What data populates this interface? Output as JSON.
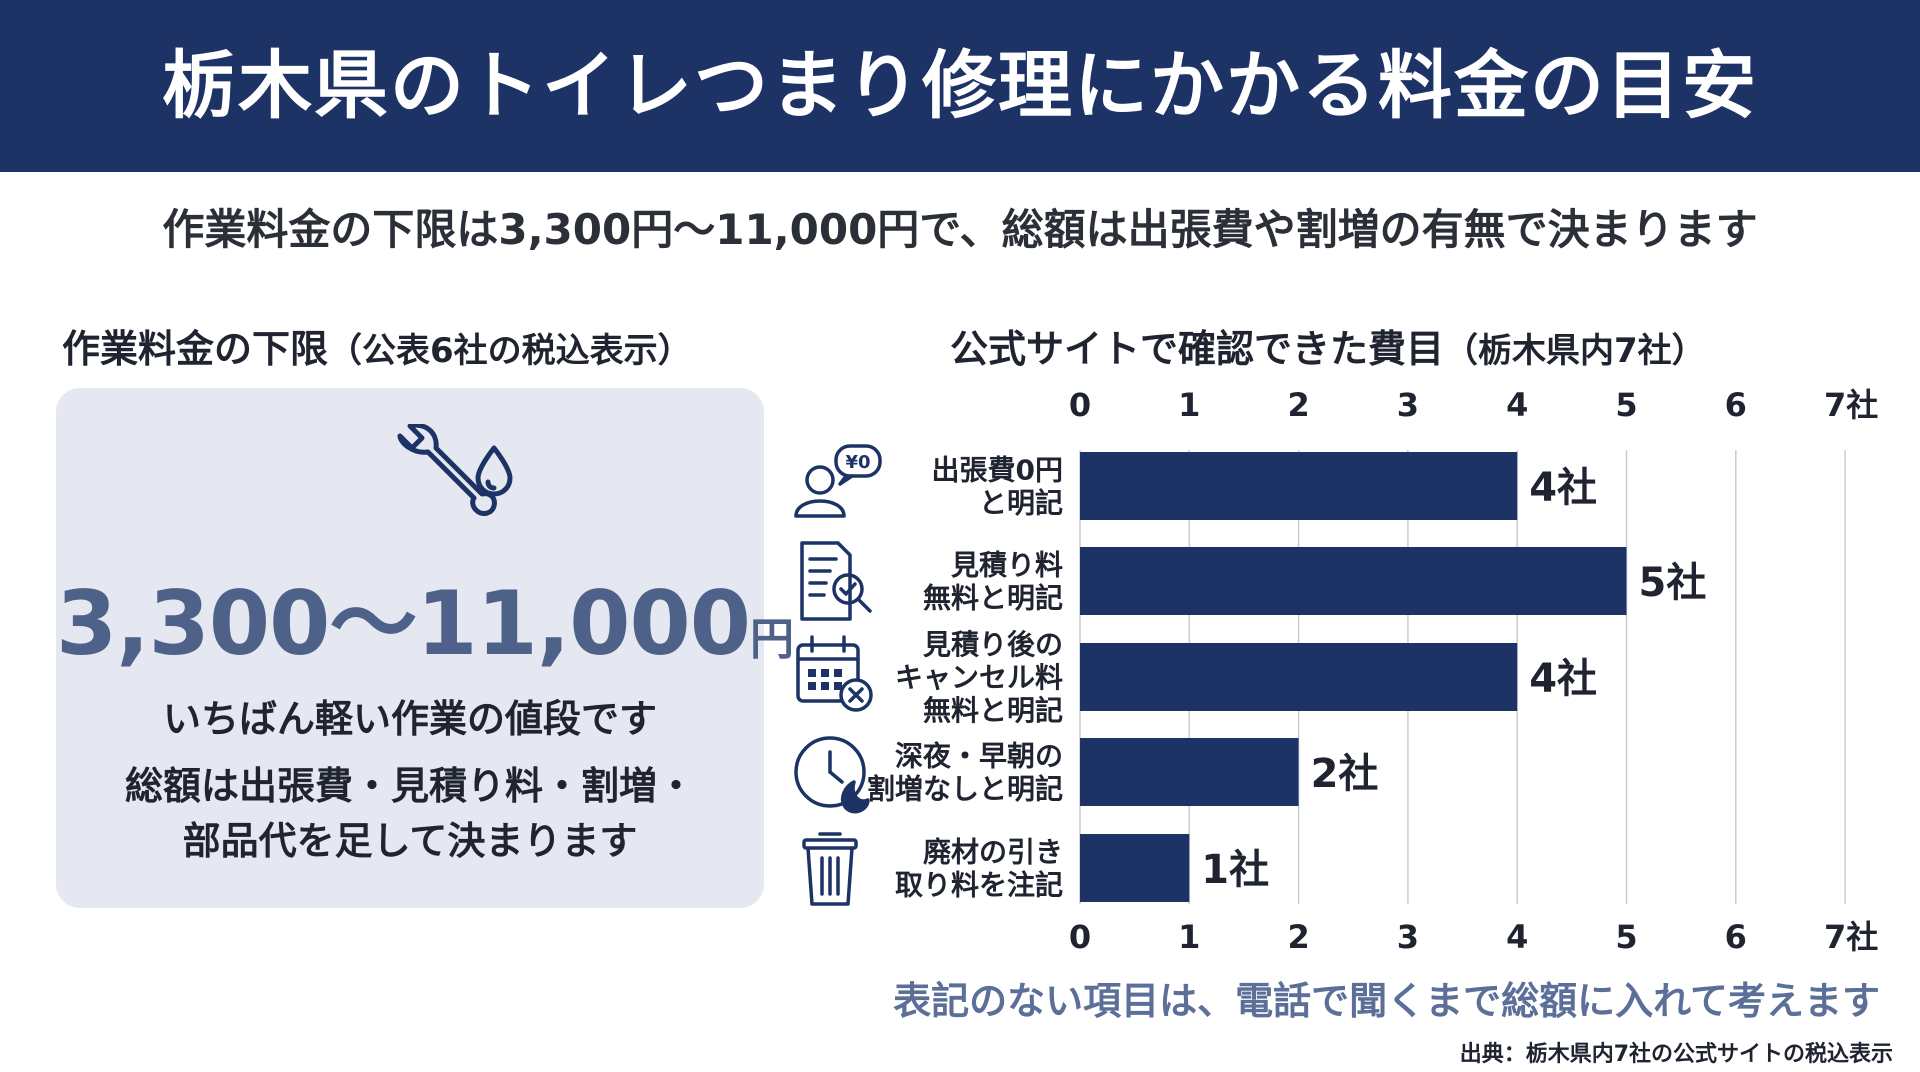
{
  "header": {
    "title": "栃木県のトイレつまり修理にかかる料金の目安"
  },
  "subtitle": "作業料金の下限は3,300円〜11,000円で、総額は出張費や割増の有無で決まります",
  "left_panel": {
    "heading": "作業料金の下限",
    "heading_sub": "（公表6社の税込表示）",
    "icon": "wrench-water-drop-icon",
    "price_value": "3,300〜11,000",
    "price_unit": "円",
    "line1": "いちばん軽い作業の値段です",
    "line2": "総額は出張費・見積り料・割増・",
    "line3": "部品代を足して決まります"
  },
  "right_panel": {
    "heading": "公式サイトで確認できた費目",
    "heading_sub": "（栃木県内7社）"
  },
  "colors": {
    "header_bg": "#1d3366",
    "bar": "#1d3366",
    "accent_text": "#4d6189",
    "note_text": "#5b6f99",
    "card_bg": "#e5e8f1"
  },
  "chart_data": {
    "type": "bar",
    "orientation": "horizontal",
    "categories": [
      {
        "lines": [
          "出張費0円",
          "と明記"
        ],
        "icon": "person-yen-speech-icon"
      },
      {
        "lines": [
          "見積り料",
          "無料と明記"
        ],
        "icon": "document-checkmark-icon"
      },
      {
        "lines": [
          "見積り後の",
          "キャンセル料",
          "無料と明記"
        ],
        "icon": "calendar-x-icon"
      },
      {
        "lines": [
          "深夜・早朝の",
          "割増なしと明記"
        ],
        "icon": "clock-moon-icon"
      },
      {
        "lines": [
          "廃材の引き",
          "取り料を注記"
        ],
        "icon": "trash-can-icon"
      }
    ],
    "values": [
      4,
      5,
      4,
      2,
      1
    ],
    "value_labels": [
      "4社",
      "5社",
      "4社",
      "2社",
      "1社"
    ],
    "ticks": [
      "0",
      "1",
      "2",
      "3",
      "4",
      "5",
      "6",
      "7社"
    ],
    "xlim": [
      0,
      7
    ],
    "grid": true
  },
  "footer": {
    "note": "表記のない項目は、電話で聞くまで総額に入れて考えます",
    "source": "出典：栃木県内7社の公式サイトの税込表示"
  }
}
